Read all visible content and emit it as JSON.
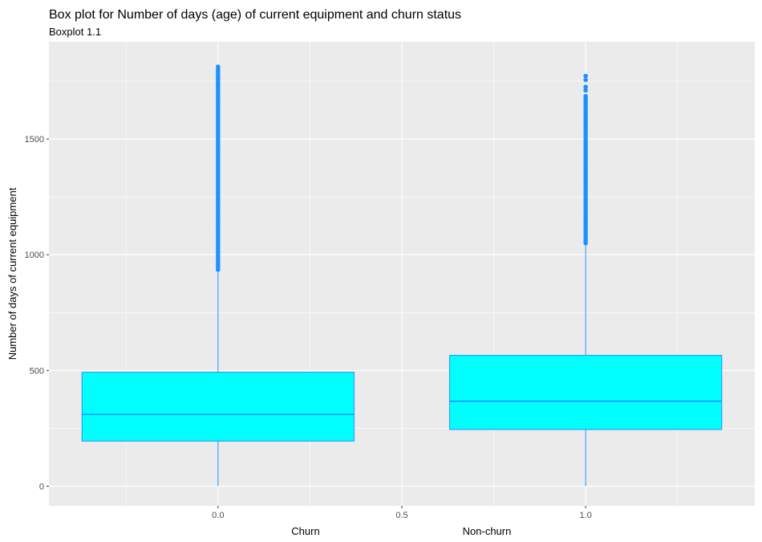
{
  "chart_data": {
    "type": "box",
    "title": "Box plot for Number of days (age) of current equipment and churn status",
    "subtitle": "Boxplot 1.1",
    "ylabel": "Number of days of current equipment",
    "x_category_labels": [
      "Churn",
      "Non-churn"
    ],
    "xlim": [
      -0.46,
      1.46
    ],
    "ylim": [
      -85,
      1920
    ],
    "x_ticks": [
      {
        "value": 0,
        "label": "0.0"
      },
      {
        "value": 0.5,
        "label": "0.5"
      },
      {
        "value": 1,
        "label": "1.0"
      }
    ],
    "y_ticks": [
      {
        "value": 0,
        "label": "0"
      },
      {
        "value": 500,
        "label": "500"
      },
      {
        "value": 1000,
        "label": "1000"
      },
      {
        "value": 1500,
        "label": "1500"
      }
    ],
    "boxes": [
      {
        "name": "Churn",
        "x": 0,
        "x_min": -0.37,
        "x_max": 0.37,
        "whisker_low": 0,
        "q1": 195,
        "median": 310,
        "q3": 492,
        "whisker_high": 935,
        "outlier_low": 935,
        "outlier_high": 1780,
        "extra_outliers": [
          1812,
          1800,
          1790,
          1765,
          1735
        ]
      },
      {
        "name": "Non-churn",
        "x": 1,
        "x_min": 0.63,
        "x_max": 1.37,
        "whisker_low": 0,
        "q1": 245,
        "median": 367,
        "q3": 565,
        "whisker_high": 1050,
        "outlier_low": 1050,
        "outlier_high": 1690,
        "extra_outliers": [
          1772,
          1755,
          1725,
          1710
        ]
      }
    ],
    "colors": {
      "panel": "#ebebeb",
      "grid": "#ffffff",
      "box_fill": "#00ffff",
      "box_line": "#1e90ff",
      "outlier": "#1e90ff"
    }
  }
}
